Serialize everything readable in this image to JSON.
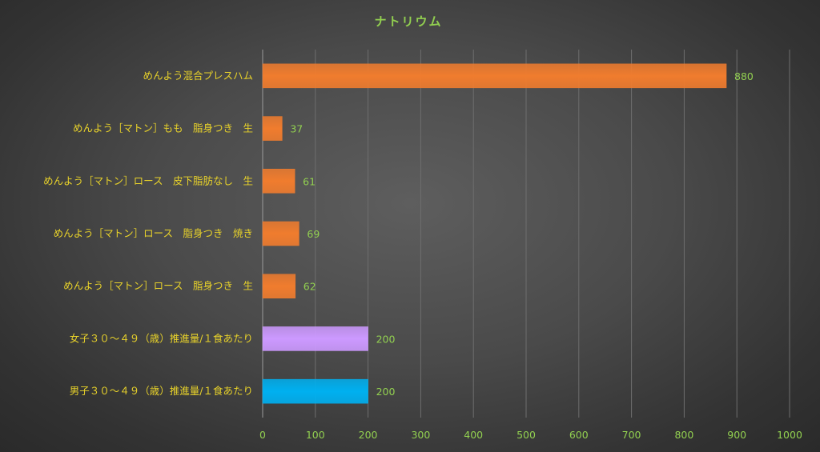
{
  "chart_data": {
    "type": "bar",
    "orientation": "horizontal",
    "title": "ナトリウム",
    "xlabel": "",
    "ylabel": "",
    "xlim": [
      0,
      1000
    ],
    "x_ticks": [
      0,
      100,
      200,
      300,
      400,
      500,
      600,
      700,
      800,
      900,
      1000
    ],
    "grid": true,
    "legend": "none",
    "categories": [
      "めんよう混合プレスハム",
      "めんよう［マトン］もも　脂身つき　生",
      "めんよう［マトン］ロース　皮下脂肪なし　生",
      "めんよう［マトン］ロース　脂身つき　焼き",
      "めんよう［マトン］ロース　脂身つき　生",
      "女子３０～４９（歳）推進量/１食あたり",
      "男子３０～４９（歳）推進量/１食あたり"
    ],
    "values": [
      880,
      37,
      61,
      69,
      62,
      200,
      200
    ],
    "data_labels": [
      "880",
      "37",
      "61",
      "69",
      "62",
      "200",
      "200"
    ],
    "bar_colors": [
      "#f07c2e",
      "#f07c2e",
      "#f07c2e",
      "#f07c2e",
      "#f07c2e",
      "#cc99ff",
      "#00b0f0"
    ]
  }
}
